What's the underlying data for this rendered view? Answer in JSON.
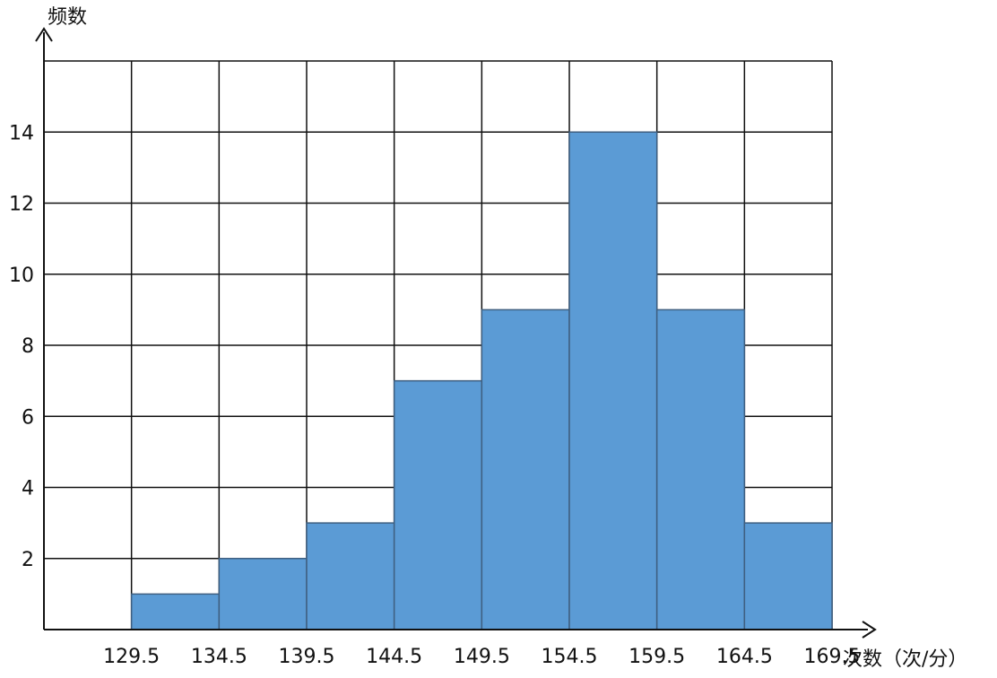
{
  "chart_data": {
    "type": "bar",
    "ylabel": "频数",
    "xlabel": "次数（次/分）",
    "x_ticks": [
      "129.5",
      "134.5",
      "139.5",
      "144.5",
      "149.5",
      "154.5",
      "159.5",
      "164.5",
      "169.5"
    ],
    "y_ticks": [
      "2",
      "4",
      "6",
      "8",
      "10",
      "12",
      "14"
    ],
    "bins": [
      {
        "from": 129.5,
        "to": 134.5,
        "value": 1
      },
      {
        "from": 134.5,
        "to": 139.5,
        "value": 2
      },
      {
        "from": 139.5,
        "to": 144.5,
        "value": 3
      },
      {
        "from": 144.5,
        "to": 149.5,
        "value": 7
      },
      {
        "from": 149.5,
        "to": 154.5,
        "value": 9
      },
      {
        "from": 154.5,
        "to": 159.5,
        "value": 14
      },
      {
        "from": 159.5,
        "to": 164.5,
        "value": 9
      },
      {
        "from": 164.5,
        "to": 169.5,
        "value": 3
      }
    ],
    "xlim": [
      124.5,
      169.5
    ],
    "ylim": [
      0,
      16
    ],
    "grid": true,
    "bar_color": "#5b9bd5"
  }
}
